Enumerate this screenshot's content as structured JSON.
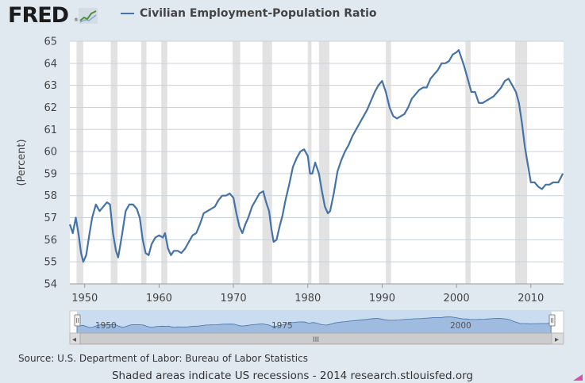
{
  "header": {
    "logo_text": "FRED",
    "logo_registered": "®",
    "legend_label": "Civilian Employment-Population Ratio",
    "series_color": "#4572a7"
  },
  "footer": {
    "source": "Source: U.S. Department of Labor: Bureau of Labor Statistics",
    "note": "Shaded areas indicate US recessions - 2014 research.stlouisfed.org"
  },
  "navigator": {
    "labels": [
      "1950",
      "1975",
      "2000"
    ],
    "scroll_grip": "III",
    "left_arrow": "◂",
    "right_arrow": "▸"
  },
  "chart_data": {
    "type": "line",
    "title": "",
    "xlabel": "",
    "ylabel": "(Percent)",
    "xlim": [
      1948.0,
      2014.4
    ],
    "ylim": [
      54,
      65
    ],
    "yticks": [
      54,
      55,
      56,
      57,
      58,
      59,
      60,
      61,
      62,
      63,
      64,
      65
    ],
    "xticks": [
      1950,
      1960,
      1970,
      1980,
      1990,
      2000,
      2010
    ],
    "grid": "horizontal",
    "recessions": [
      [
        1948.9,
        1949.8
      ],
      [
        1953.5,
        1954.4
      ],
      [
        1957.6,
        1958.3
      ],
      [
        1960.3,
        1961.1
      ],
      [
        1969.9,
        1970.9
      ],
      [
        1973.9,
        1975.2
      ],
      [
        1980.0,
        1980.5
      ],
      [
        1981.5,
        1982.9
      ],
      [
        1990.5,
        1991.2
      ],
      [
        2001.2,
        2001.9
      ],
      [
        2007.9,
        2009.5
      ]
    ],
    "series": [
      {
        "name": "Civilian Employment-Population Ratio",
        "color": "#4572a7",
        "x": [
          1948.0,
          1948.4,
          1948.8,
          1949.2,
          1949.5,
          1949.8,
          1950.2,
          1950.6,
          1951.0,
          1951.5,
          1952.0,
          1952.5,
          1953.0,
          1953.4,
          1953.8,
          1954.2,
          1954.5,
          1955.0,
          1955.5,
          1956.0,
          1956.5,
          1957.0,
          1957.4,
          1957.8,
          1958.2,
          1958.6,
          1959.0,
          1959.5,
          1960.0,
          1960.5,
          1960.8,
          1961.2,
          1961.6,
          1962.0,
          1962.5,
          1963.0,
          1963.5,
          1964.0,
          1964.5,
          1965.0,
          1965.5,
          1966.0,
          1966.5,
          1967.0,
          1967.5,
          1968.0,
          1968.5,
          1969.0,
          1969.5,
          1970.0,
          1970.4,
          1970.8,
          1971.2,
          1971.6,
          1972.0,
          1972.5,
          1973.0,
          1973.5,
          1974.0,
          1974.4,
          1974.8,
          1975.1,
          1975.4,
          1975.8,
          1976.2,
          1976.6,
          1977.0,
          1977.5,
          1978.0,
          1978.5,
          1979.0,
          1979.5,
          1980.0,
          1980.3,
          1980.6,
          1981.0,
          1981.5,
          1981.9,
          1982.3,
          1982.7,
          1983.0,
          1983.5,
          1984.0,
          1984.5,
          1985.0,
          1985.5,
          1986.0,
          1986.5,
          1987.0,
          1987.5,
          1988.0,
          1988.5,
          1989.0,
          1989.5,
          1990.0,
          1990.5,
          1991.0,
          1991.5,
          1992.0,
          1992.5,
          1993.0,
          1993.5,
          1994.0,
          1994.5,
          1995.0,
          1995.5,
          1996.0,
          1996.5,
          1997.0,
          1997.5,
          1998.0,
          1998.5,
          1999.0,
          1999.5,
          2000.0,
          2000.3,
          2000.7,
          2001.0,
          2001.5,
          2002.0,
          2002.5,
          2003.0,
          2003.5,
          2004.0,
          2004.5,
          2005.0,
          2005.5,
          2006.0,
          2006.5,
          2007.0,
          2007.5,
          2008.0,
          2008.4,
          2008.8,
          2009.2,
          2009.6,
          2010.0,
          2010.5,
          2011.0,
          2011.5,
          2012.0,
          2012.5,
          2013.0,
          2013.3,
          2013.7,
          2014.0,
          2014.3
        ],
        "y": [
          56.7,
          56.3,
          57.0,
          56.2,
          55.4,
          55.0,
          55.3,
          56.2,
          57.0,
          57.6,
          57.3,
          57.5,
          57.7,
          57.6,
          56.3,
          55.5,
          55.2,
          56.2,
          57.3,
          57.6,
          57.6,
          57.4,
          57.0,
          56.0,
          55.4,
          55.3,
          55.8,
          56.1,
          56.2,
          56.1,
          56.3,
          55.6,
          55.3,
          55.5,
          55.5,
          55.4,
          55.6,
          55.9,
          56.2,
          56.3,
          56.7,
          57.2,
          57.3,
          57.4,
          57.5,
          57.8,
          58.0,
          58.0,
          58.1,
          57.9,
          57.2,
          56.6,
          56.3,
          56.7,
          57.0,
          57.5,
          57.8,
          58.1,
          58.2,
          57.7,
          57.3,
          56.5,
          55.9,
          56.0,
          56.6,
          57.1,
          57.8,
          58.5,
          59.3,
          59.7,
          60.0,
          60.1,
          59.8,
          59.0,
          59.0,
          59.5,
          59.0,
          58.2,
          57.5,
          57.2,
          57.3,
          58.1,
          59.1,
          59.6,
          60.0,
          60.3,
          60.7,
          61.0,
          61.3,
          61.6,
          61.9,
          62.3,
          62.7,
          63.0,
          63.2,
          62.7,
          62.0,
          61.6,
          61.5,
          61.6,
          61.7,
          62.0,
          62.4,
          62.6,
          62.8,
          62.9,
          62.9,
          63.3,
          63.5,
          63.7,
          64.0,
          64.0,
          64.1,
          64.4,
          64.5,
          64.6,
          64.2,
          63.9,
          63.3,
          62.7,
          62.7,
          62.2,
          62.2,
          62.3,
          62.4,
          62.5,
          62.7,
          62.9,
          63.2,
          63.3,
          63.0,
          62.7,
          62.2,
          61.3,
          60.2,
          59.4,
          58.6,
          58.6,
          58.4,
          58.3,
          58.5,
          58.5,
          58.6,
          58.6,
          58.6,
          58.8,
          59.0
        ]
      }
    ]
  }
}
